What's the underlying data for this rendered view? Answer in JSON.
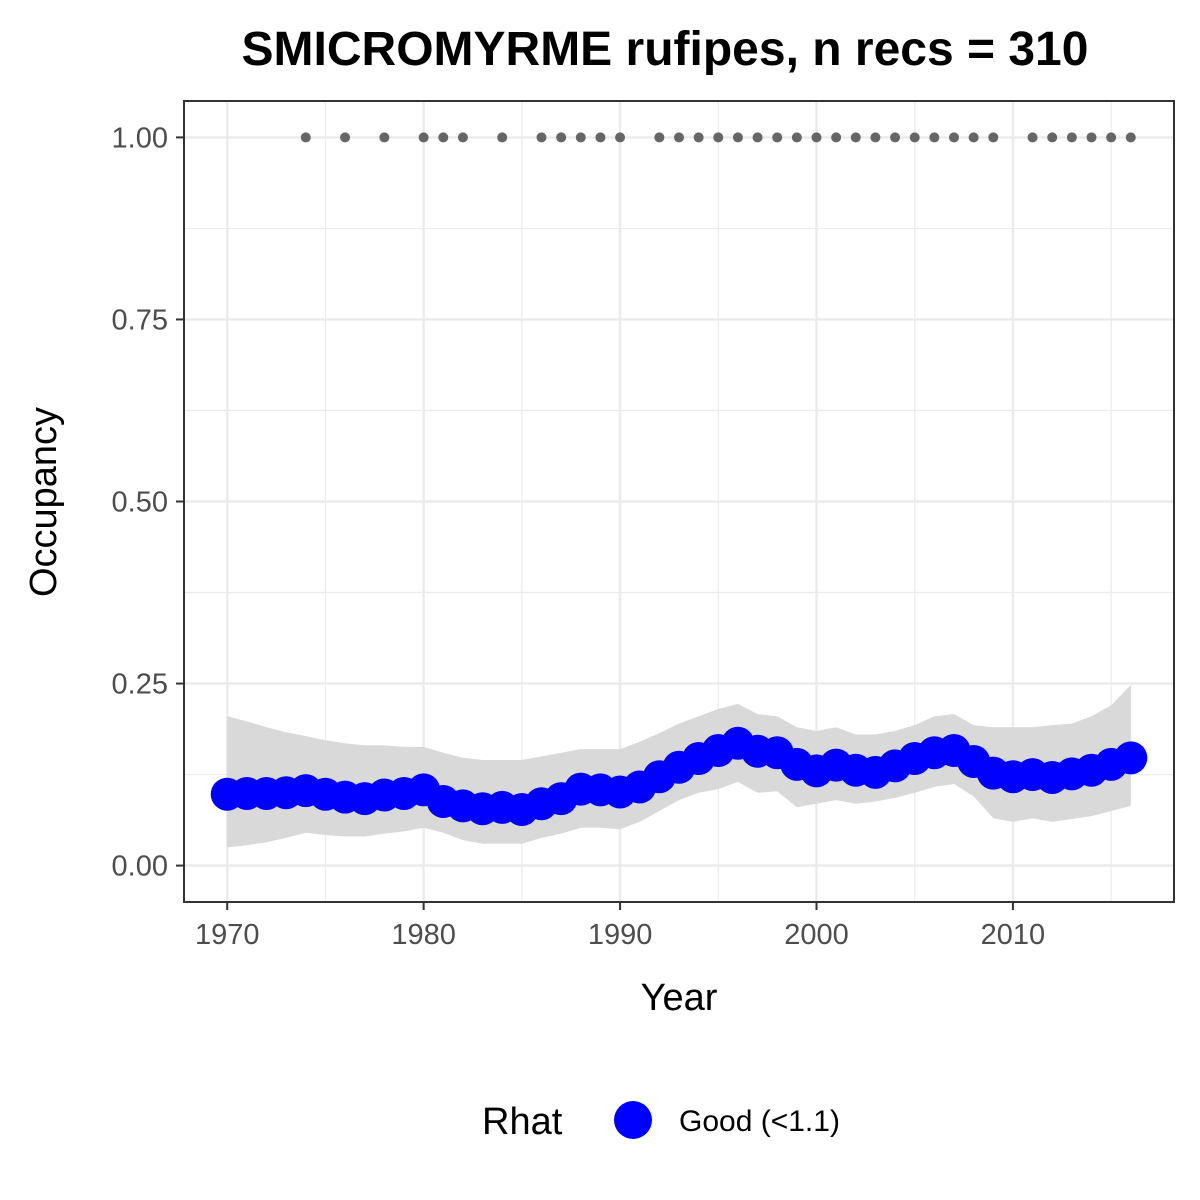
{
  "chart_data": {
    "type": "line",
    "title": "SMICROMYRME rufipes, n recs = 310",
    "xlabel": "Year",
    "ylabel": "Occupancy",
    "xlim": [
      1967.8,
      2018.2
    ],
    "ylim": [
      -0.05,
      1.05
    ],
    "x_ticks": [
      1970,
      1980,
      1990,
      2000,
      2010
    ],
    "x_tick_labels": [
      "1970",
      "1980",
      "1990",
      "2000",
      "2010"
    ],
    "y_ticks": [
      0,
      0.25,
      0.5,
      0.75,
      1.0
    ],
    "y_tick_labels": [
      "0.00",
      "0.25",
      "0.50",
      "0.75",
      "1.00"
    ],
    "grid": true,
    "legend": {
      "title": "Rhat",
      "position": "bottom",
      "entries": [
        {
          "label": "Good (<1.1)",
          "color": "#0000ff"
        }
      ]
    },
    "colors": {
      "estimate": "#0000ff",
      "ribbon": "#d9d9d9",
      "records": "#666666"
    },
    "series": [
      {
        "x": [
          1970,
          1971,
          1972,
          1973,
          1974,
          1975,
          1976,
          1977,
          1978,
          1979,
          1980,
          1981,
          1982,
          1983,
          1984,
          1985,
          1986,
          1987,
          1988,
          1989,
          1990,
          1991,
          1992,
          1993,
          1994,
          1995,
          1996,
          1997,
          1998,
          1999,
          2000,
          2001,
          2002,
          2003,
          2004,
          2005,
          2006,
          2007,
          2008,
          2009,
          2010,
          2011,
          2012,
          2013,
          2014,
          2015,
          2016
        ],
        "y": [
          0.098,
          0.099,
          0.099,
          0.1,
          0.103,
          0.098,
          0.094,
          0.092,
          0.097,
          0.099,
          0.104,
          0.088,
          0.082,
          0.078,
          0.08,
          0.077,
          0.085,
          0.092,
          0.105,
          0.104,
          0.101,
          0.108,
          0.122,
          0.135,
          0.147,
          0.158,
          0.168,
          0.157,
          0.155,
          0.139,
          0.13,
          0.138,
          0.131,
          0.128,
          0.137,
          0.147,
          0.155,
          0.158,
          0.143,
          0.127,
          0.122,
          0.125,
          0.121,
          0.126,
          0.131,
          0.139,
          0.148
        ],
        "lower": [
          0.025,
          0.028,
          0.032,
          0.038,
          0.045,
          0.042,
          0.04,
          0.04,
          0.044,
          0.047,
          0.052,
          0.045,
          0.035,
          0.03,
          0.03,
          0.03,
          0.038,
          0.044,
          0.052,
          0.052,
          0.05,
          0.06,
          0.075,
          0.09,
          0.1,
          0.105,
          0.115,
          0.1,
          0.102,
          0.08,
          0.085,
          0.09,
          0.085,
          0.088,
          0.093,
          0.1,
          0.108,
          0.112,
          0.095,
          0.065,
          0.06,
          0.065,
          0.06,
          0.064,
          0.068,
          0.075,
          0.082
        ],
        "upper": [
          0.205,
          0.198,
          0.19,
          0.183,
          0.178,
          0.172,
          0.168,
          0.165,
          0.165,
          0.163,
          0.163,
          0.155,
          0.148,
          0.145,
          0.145,
          0.145,
          0.15,
          0.155,
          0.16,
          0.16,
          0.16,
          0.17,
          0.182,
          0.195,
          0.205,
          0.215,
          0.222,
          0.208,
          0.205,
          0.19,
          0.185,
          0.19,
          0.18,
          0.18,
          0.185,
          0.193,
          0.205,
          0.208,
          0.193,
          0.19,
          0.19,
          0.19,
          0.193,
          0.195,
          0.205,
          0.22,
          0.248
        ]
      },
      {
        "x": [
          1974,
          1976,
          1978,
          1980,
          1981,
          1982,
          1984,
          1986,
          1987,
          1988,
          1989,
          1990,
          1992,
          1993,
          1994,
          1995,
          1996,
          1997,
          1998,
          1999,
          2000,
          2001,
          2002,
          2003,
          2004,
          2005,
          2006,
          2007,
          2008,
          2009,
          2011,
          2012,
          2013,
          2014,
          2015,
          2016
        ],
        "y": [
          1,
          1,
          1,
          1,
          1,
          1,
          1,
          1,
          1,
          1,
          1,
          1,
          1,
          1,
          1,
          1,
          1,
          1,
          1,
          1,
          1,
          1,
          1,
          1,
          1,
          1,
          1,
          1,
          1,
          1,
          1,
          1,
          1,
          1,
          1,
          1
        ]
      }
    ]
  }
}
